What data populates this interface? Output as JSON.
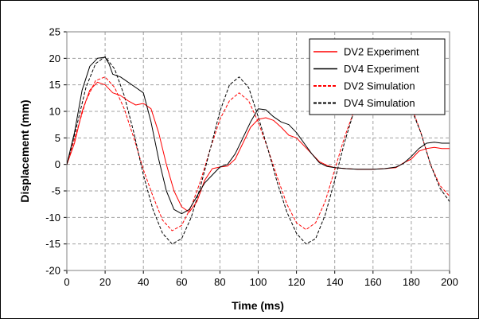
{
  "chart_data": {
    "type": "line",
    "xlabel": "Time (ms)",
    "ylabel": "Displacement (mm)",
    "xlim": [
      0,
      200
    ],
    "ylim": [
      -20,
      25
    ],
    "x_ticks": [
      0,
      20,
      40,
      60,
      80,
      100,
      120,
      140,
      160,
      180,
      200
    ],
    "y_ticks": [
      -20,
      -15,
      -10,
      -5,
      0,
      5,
      10,
      15,
      20,
      25
    ],
    "grid": "dashed",
    "legend_position": "top-right",
    "series": [
      {
        "name": "DV2 Experiment",
        "color": "#ff0000",
        "style": "solid",
        "width": 1,
        "x": [
          0,
          4,
          8,
          12,
          16,
          20,
          24,
          28,
          32,
          36,
          40,
          44,
          48,
          52,
          56,
          60,
          64,
          68,
          72,
          76,
          80,
          84,
          88,
          92,
          96,
          100,
          104,
          108,
          112,
          116,
          120,
          124,
          128,
          132,
          136,
          140,
          146,
          152,
          160,
          166,
          172,
          176,
          180,
          184,
          188,
          192,
          196,
          200
        ],
        "y": [
          0,
          4,
          10,
          14,
          15.5,
          15,
          13.5,
          13,
          12,
          11.2,
          11.5,
          10.5,
          6,
          0,
          -5,
          -8,
          -9,
          -7,
          -3,
          -0.8,
          -0.5,
          -0.3,
          1,
          4,
          7,
          8.5,
          8.8,
          8.3,
          7,
          5.5,
          5,
          3.5,
          2,
          0.5,
          -0.2,
          -0.6,
          -0.8,
          -0.9,
          -0.9,
          -0.8,
          -0.6,
          0.3,
          1,
          2.5,
          3,
          3.2,
          3,
          3
        ]
      },
      {
        "name": "DV4 Experiment",
        "color": "#000000",
        "style": "solid",
        "width": 1,
        "x": [
          0,
          4,
          8,
          12,
          16,
          20,
          22,
          24,
          28,
          32,
          36,
          40,
          44,
          48,
          52,
          56,
          60,
          64,
          68,
          72,
          76,
          80,
          84,
          88,
          92,
          96,
          100,
          104,
          108,
          112,
          116,
          120,
          124,
          128,
          132,
          136,
          140,
          146,
          152,
          160,
          166,
          172,
          176,
          180,
          184,
          188,
          192,
          196,
          200
        ],
        "y": [
          0,
          6,
          14,
          18.5,
          20,
          20.2,
          19,
          17,
          16.5,
          15.5,
          14.5,
          13.5,
          8,
          1,
          -5,
          -8.5,
          -9.3,
          -8.5,
          -6,
          -3.5,
          -2,
          -0.5,
          0,
          2,
          5,
          8,
          10.5,
          10.3,
          9,
          8,
          7.5,
          6,
          4,
          2,
          0.3,
          -0.4,
          -0.6,
          -0.8,
          -0.9,
          -0.9,
          -0.8,
          -0.5,
          0.2,
          1.5,
          3,
          4,
          4.2,
          4,
          4
        ]
      },
      {
        "name": "DV2 Simulation",
        "color": "#ff0000",
        "style": "dashed",
        "width": 1,
        "x": [
          0,
          5,
          10,
          15,
          20,
          25,
          30,
          35,
          40,
          45,
          50,
          55,
          60,
          65,
          70,
          75,
          80,
          85,
          90,
          95,
          100,
          105,
          110,
          115,
          120,
          125,
          130,
          135,
          140,
          145,
          150,
          155,
          160,
          165,
          170,
          175,
          180,
          185,
          190,
          195,
          200
        ],
        "y": [
          0,
          6,
          12,
          15.8,
          16.5,
          14.5,
          10.5,
          5,
          -1,
          -6,
          -10.5,
          -12.5,
          -11.5,
          -8,
          -3,
          3,
          8.5,
          12,
          13.5,
          12,
          8,
          3,
          -2.5,
          -7.5,
          -11,
          -12.3,
          -11,
          -7,
          -1,
          5,
          10,
          13,
          14,
          13.5,
          12,
          12,
          11,
          6,
          0,
          -4,
          -6
        ]
      },
      {
        "name": "DV4 Simulation",
        "color": "#000000",
        "style": "dashed",
        "width": 1,
        "x": [
          0,
          5,
          10,
          15,
          20,
          25,
          30,
          35,
          40,
          45,
          50,
          55,
          60,
          65,
          70,
          75,
          80,
          85,
          90,
          95,
          100,
          105,
          110,
          115,
          120,
          125,
          130,
          135,
          140,
          145,
          150,
          155,
          160,
          165,
          170,
          175,
          180,
          185,
          190,
          195,
          200
        ],
        "y": [
          0,
          7,
          14.5,
          19,
          20.3,
          18,
          13,
          6,
          -2,
          -8.5,
          -13,
          -15,
          -14,
          -10,
          -4,
          3,
          10,
          15,
          16.5,
          14.5,
          9,
          3,
          -3.5,
          -9,
          -13,
          -15,
          -14,
          -9.5,
          -3,
          4,
          10,
          14,
          15,
          14.2,
          12.5,
          11.5,
          10.5,
          6,
          0,
          -4.5,
          -7
        ]
      }
    ]
  }
}
